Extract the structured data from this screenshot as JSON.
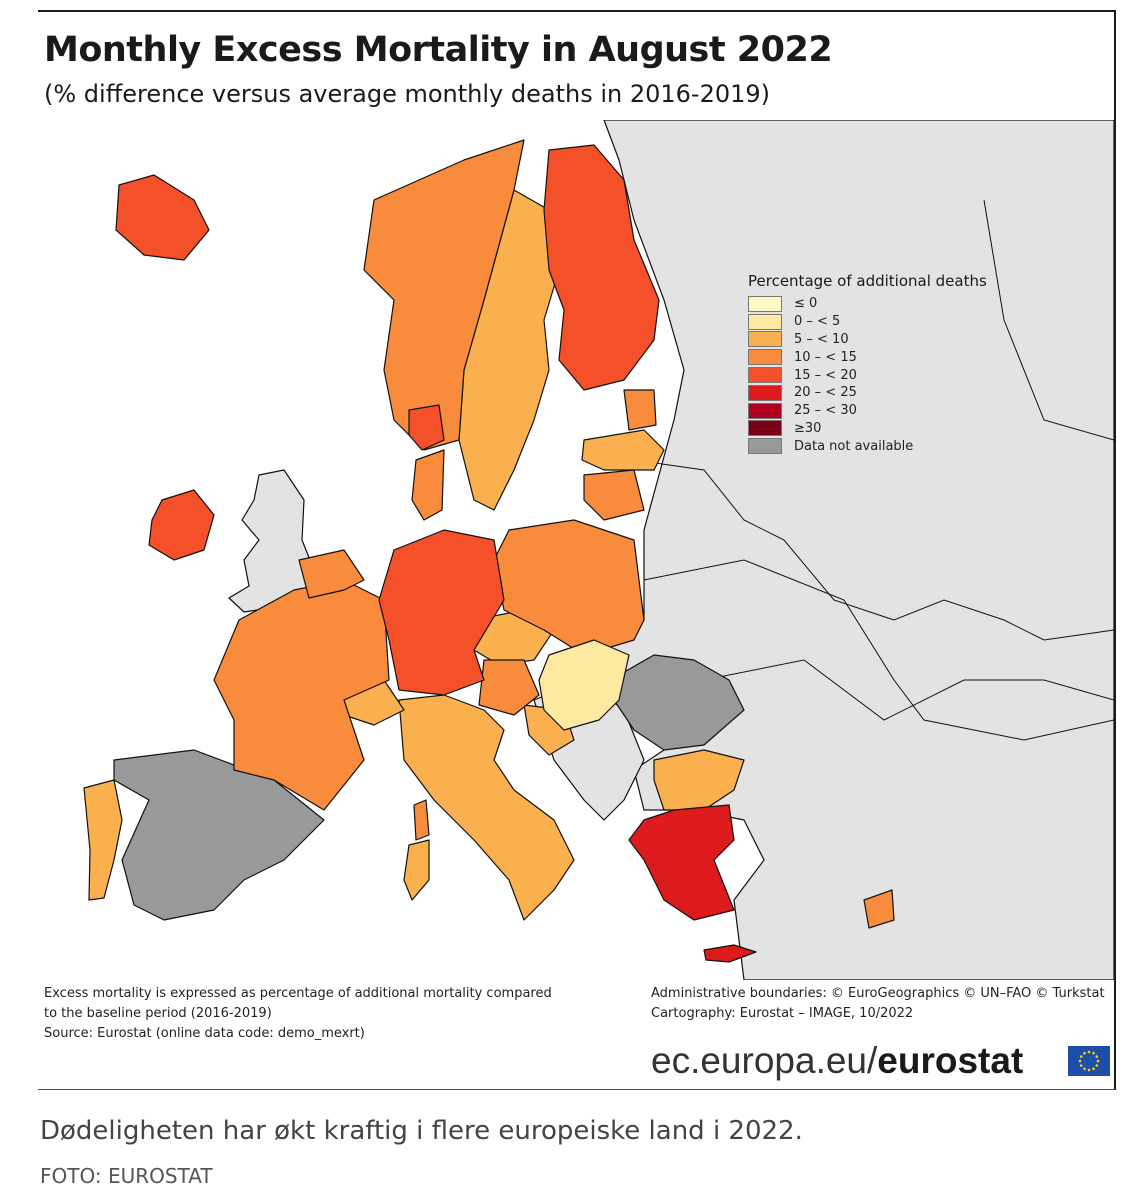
{
  "title": "Monthly Excess Mortality in August 2022",
  "subtitle": "(% difference versus average monthly deaths in 2016-2019)",
  "legend": {
    "title": "Percentage of additional deaths",
    "items": [
      {
        "label": "≤ 0",
        "color": "#fff9c4"
      },
      {
        "label": "0 – < 5",
        "color": "#fde9a0"
      },
      {
        "label": "5 – < 10",
        "color": "#fbb04f"
      },
      {
        "label": "10 – < 15",
        "color": "#f98c3c"
      },
      {
        "label": "15 – < 20",
        "color": "#f4502a"
      },
      {
        "label": "20 – < 25",
        "color": "#dd1a1c"
      },
      {
        "label": "25 – < 30",
        "color": "#b0001f"
      },
      {
        "label": "≥30",
        "color": "#7a0018"
      },
      {
        "label": "Data not available",
        "color": "#999999"
      }
    ]
  },
  "map_colors": {
    "sea": "#ffffff",
    "non_member": "#e3e3e3",
    "border": "#111111"
  },
  "note": {
    "line1": "Excess mortality is expressed as percentage of additional mortality compared",
    "line2": "to the baseline period (2016-2019)",
    "line3": "Source: Eurostat (online data code: demo_mexrt)"
  },
  "credits": {
    "line1": "Administrative boundaries: © EuroGeographics © UN–FAO © Turkstat",
    "line2": "Cartography: Eurostat – IMAGE, 10/2022"
  },
  "brand": {
    "prefix": "ec.europa.eu/",
    "name": "eurostat"
  },
  "caption": "Dødeligheten har økt kraftig i flere europeiske land i 2022.",
  "photo_credit": "FOTO: EUROSTAT"
}
